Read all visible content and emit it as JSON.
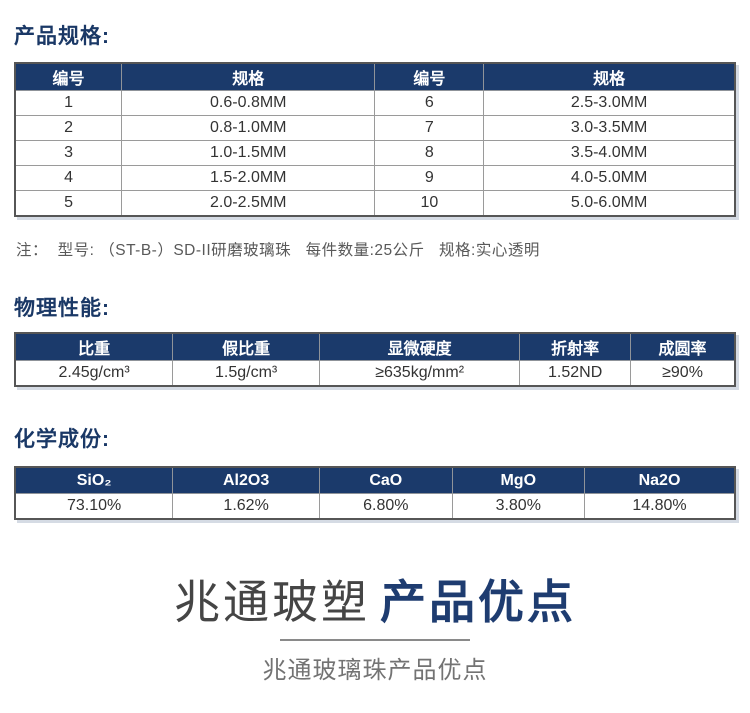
{
  "colors": {
    "header_navy": "#1b3a6b",
    "heading_text": "#1a3866",
    "accent_title": "#1e3c70",
    "note_text": "#595959",
    "subtitle_gray": "#737373"
  },
  "sections": {
    "spec": {
      "heading": "产品规格:",
      "table": {
        "headers": [
          "编号",
          "规格",
          "编号",
          "规格"
        ],
        "rows": [
          [
            "1",
            "0.6-0.8MM",
            "6",
            "2.5-3.0MM"
          ],
          [
            "2",
            "0.8-1.0MM",
            "7",
            "3.0-3.5MM"
          ],
          [
            "3",
            "1.0-1.5MM",
            "8",
            "3.5-4.0MM"
          ],
          [
            "4",
            "1.5-2.0MM",
            "9",
            "4.0-5.0MM"
          ],
          [
            "5",
            "2.0-2.5MM",
            "10",
            "5.0-6.0MM"
          ]
        ]
      },
      "note": "注：  型号: （ST-B-）SD-II研磨玻璃珠   每件数量:25公斤   规格:实心透明"
    },
    "physical": {
      "heading": "物理性能:",
      "table": {
        "headers": [
          "比重",
          "假比重",
          "显微硬度",
          "折射率",
          "成圆率"
        ],
        "rows": [
          [
            "2.45g/cm³",
            "1.5g/cm³",
            "≥635kg/mm²",
            "1.52ND",
            "≥90%"
          ]
        ]
      }
    },
    "chemical": {
      "heading": "化学成份:",
      "table": {
        "headers": [
          "SiO₂",
          "Al2O3",
          "CaO",
          "MgO",
          "Na2O"
        ],
        "rows": [
          [
            "73.10%",
            "1.62%",
            "6.80%",
            "3.80%",
            "14.80%"
          ]
        ]
      }
    },
    "footer": {
      "brand": "兆通玻塑",
      "title": "产品优点",
      "subtitle": "兆通玻璃珠产品优点"
    }
  }
}
